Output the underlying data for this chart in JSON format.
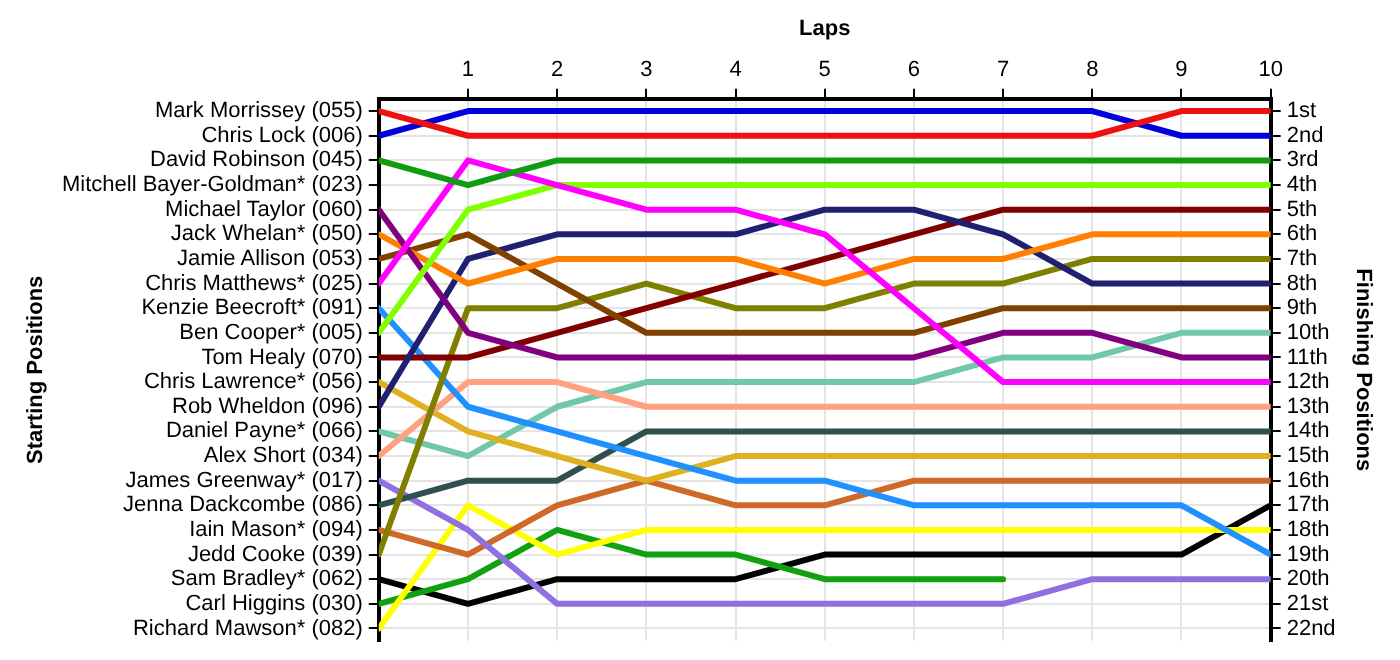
{
  "chart_data": {
    "type": "line",
    "xlabel": "Laps",
    "annotations": [
      "Starting Positions"
    ],
    "y2label": "Finishing Positions",
    "x": [
      0,
      1,
      2,
      3,
      4,
      5,
      6,
      7,
      8,
      9,
      10
    ],
    "xlim": [
      0,
      10
    ],
    "xticks": [
      1,
      2,
      3,
      4,
      5,
      6,
      7,
      8,
      9,
      10
    ],
    "y_categories": [
      "Mark Morrissey (055)",
      "Chris Lock (006)",
      "David Robinson (045)",
      "Mitchell Bayer-Goldman* (023)",
      "Michael Taylor (060)",
      "Jack Whelan* (050)",
      "Jamie Allison (053)",
      "Chris Matthews* (025)",
      "Kenzie Beecroft* (091)",
      "Ben Cooper* (005)",
      "Tom Healy (070)",
      "Chris Lawrence* (056)",
      "Rob Wheldon (096)",
      "Daniel Payne* (066)",
      "Alex Short (034)",
      "James Greenway* (017)",
      "Jenna Dackcombe (086)",
      "Iain Mason* (094)",
      "Jedd Cooke (039)",
      "Sam Bradley* (062)",
      "Carl Higgins (030)",
      "Richard Mawson* (082)"
    ],
    "y2lim": [
      22.5,
      0.5
    ],
    "y2ticks": [
      {
        "value": 1,
        "label": "1st"
      },
      {
        "value": 2,
        "label": "2nd"
      },
      {
        "value": 3,
        "label": "3rd"
      },
      {
        "value": 4,
        "label": "4th"
      },
      {
        "value": 5,
        "label": "5th"
      },
      {
        "value": 6,
        "label": "6th"
      },
      {
        "value": 7,
        "label": "7th"
      },
      {
        "value": 8,
        "label": "8th"
      },
      {
        "value": 9,
        "label": "9th"
      },
      {
        "value": 10,
        "label": "10th"
      },
      {
        "value": 11,
        "label": "11th"
      },
      {
        "value": 12,
        "label": "12th"
      },
      {
        "value": 13,
        "label": "13th"
      },
      {
        "value": 14,
        "label": "14th"
      },
      {
        "value": 15,
        "label": "15th"
      },
      {
        "value": 16,
        "label": "16th"
      },
      {
        "value": 17,
        "label": "17th"
      },
      {
        "value": 18,
        "label": "18th"
      },
      {
        "value": 19,
        "label": "19th"
      },
      {
        "value": 20,
        "label": "20th"
      },
      {
        "value": 21,
        "label": "21st"
      },
      {
        "value": 22,
        "label": "22nd"
      }
    ],
    "grid": true,
    "legend": false,
    "marker": "none",
    "line_style": "solid",
    "series": [
      {
        "axis": "y2",
        "color": "#ee1111",
        "values": [
          1,
          2,
          2,
          2,
          2,
          2,
          2,
          2,
          2,
          1,
          1
        ]
      },
      {
        "axis": "y2",
        "color": "#0000dd",
        "values": [
          2,
          1,
          1,
          1,
          1,
          1,
          1,
          1,
          1,
          2,
          2
        ]
      },
      {
        "axis": "y2",
        "color": "#109c10",
        "values": [
          3,
          4,
          3,
          3,
          3,
          3,
          3,
          3,
          3,
          3,
          3
        ]
      },
      {
        "axis": "y2",
        "color": "#ff00ff",
        "values": [
          8,
          3,
          4,
          5,
          5,
          6,
          9,
          12,
          12,
          12,
          12
        ]
      },
      {
        "axis": "y2",
        "color": "#80ff00",
        "values": [
          10,
          5,
          4,
          4,
          4,
          4,
          4,
          4,
          4,
          4,
          4
        ]
      },
      {
        "axis": "y2",
        "color": "#800080",
        "values": [
          5,
          10,
          11,
          11,
          11,
          11,
          11,
          10,
          10,
          11,
          11
        ]
      },
      {
        "axis": "y2",
        "color": "#ff8000",
        "values": [
          6,
          8,
          7,
          7,
          7,
          8,
          7,
          7,
          6,
          6,
          6
        ]
      },
      {
        "axis": "y2",
        "color": "#804000",
        "values": [
          7,
          6,
          8,
          10,
          10,
          10,
          10,
          9,
          9,
          9,
          9
        ]
      },
      {
        "axis": "y2",
        "color": "#202070",
        "values": [
          13,
          7,
          6,
          6,
          6,
          5,
          5,
          6,
          8,
          8,
          8
        ]
      },
      {
        "axis": "y2",
        "color": "#800000",
        "values": [
          11,
          11,
          10,
          9,
          8,
          7,
          6,
          5,
          5,
          5,
          5
        ]
      },
      {
        "axis": "y2",
        "color": "#808000",
        "values": [
          19,
          9,
          9,
          8,
          9,
          9,
          8,
          8,
          7,
          7,
          7
        ]
      },
      {
        "axis": "y2",
        "color": "#2090ff",
        "values": [
          9,
          13,
          14,
          15,
          16,
          16,
          17,
          17,
          17,
          17,
          19
        ]
      },
      {
        "axis": "y2",
        "color": "#ffa080",
        "values": [
          15,
          12,
          12,
          13,
          13,
          13,
          13,
          13,
          13,
          13,
          13
        ]
      },
      {
        "axis": "y2",
        "color": "#e0b020",
        "values": [
          12,
          14,
          15,
          16,
          15,
          15,
          15,
          15,
          15,
          15,
          15
        ]
      },
      {
        "axis": "y2",
        "color": "#70c8a8",
        "values": [
          14,
          15,
          13,
          12,
          12,
          12,
          12,
          11,
          11,
          10,
          10
        ]
      },
      {
        "axis": "y2",
        "color": "#305050",
        "values": [
          17,
          16,
          16,
          14,
          14,
          14,
          14,
          14,
          14,
          14,
          14
        ]
      },
      {
        "axis": "y2",
        "color": "#9070e0",
        "values": [
          16,
          18,
          21,
          21,
          21,
          21,
          21,
          21,
          20,
          20,
          20
        ]
      },
      {
        "axis": "y2",
        "color": "#d06828",
        "values": [
          18,
          19,
          17,
          16,
          17,
          17,
          16,
          16,
          16,
          16,
          16
        ]
      },
      {
        "axis": "y2",
        "color": "#ffff00",
        "values": [
          22,
          17,
          19,
          18,
          18,
          18,
          18,
          18,
          18,
          18,
          18
        ]
      },
      {
        "axis": "y2",
        "color": "#10a010",
        "values": [
          21,
          20,
          18,
          19,
          19,
          20,
          20,
          20,
          null,
          null,
          null
        ]
      },
      {
        "axis": "y2",
        "color": "#000000",
        "values": [
          20,
          21,
          20,
          20,
          20,
          19,
          19,
          19,
          19,
          19,
          17
        ]
      }
    ]
  }
}
